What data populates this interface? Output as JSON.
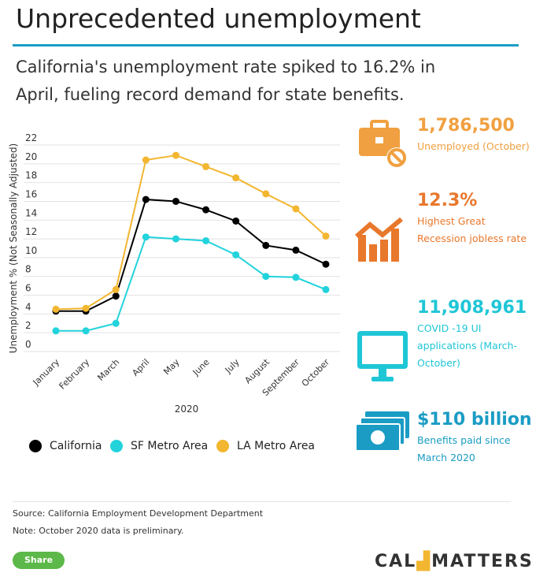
{
  "header": {
    "title": "Unprecedented unemployment",
    "subtitle": "California's unemployment rate spiked to 16.2% in April, fueling record demand for state benefits."
  },
  "chart_data": {
    "type": "line",
    "y_label": "Unemployment % (Not Seasonally Adjusted)",
    "x_label": "2020",
    "categories": [
      "January",
      "February",
      "March",
      "April",
      "May",
      "June",
      "July",
      "August",
      "September",
      "October"
    ],
    "series": [
      {
        "name": "California",
        "color": "#000000",
        "values": [
          4.3,
          4.3,
          5.9,
          16.2,
          16.0,
          15.1,
          13.9,
          11.3,
          10.8,
          9.3
        ]
      },
      {
        "name": "SF Metro Area",
        "color": "#22d3dc",
        "values": [
          2.2,
          2.2,
          3.0,
          12.2,
          12.0,
          11.8,
          10.3,
          8.0,
          7.9,
          6.6
        ]
      },
      {
        "name": "LA Metro Area",
        "color": "#f2b630",
        "values": [
          4.5,
          4.6,
          6.6,
          20.4,
          20.9,
          19.7,
          18.5,
          16.8,
          15.2,
          12.3
        ]
      }
    ],
    "ylim": [
      0,
      22
    ],
    "yticks": [
      0,
      2,
      4,
      6,
      8,
      10,
      12,
      14,
      16,
      18,
      20,
      22
    ],
    "grid": true
  },
  "stats": [
    {
      "value": "1,786,500",
      "label": "Unemployed (October)",
      "color": "#f0a040"
    },
    {
      "value": "12.3%",
      "label": "Highest Great Recession jobless rate",
      "color": "#e8782c"
    },
    {
      "value": "11,908,961",
      "label": "COVID -19 UI applications (March-October)",
      "color": "#1fc6d6"
    },
    {
      "value": "$110 billion",
      "label": "Benefits paid since March 2020",
      "color": "#1a9cc4"
    }
  ],
  "footer": {
    "source": "Source: California Employment Development Department",
    "note": "Note: October 2020 data is preliminary.",
    "share": "Share",
    "logo_left": "CAL",
    "logo_right": "MATTERS"
  }
}
